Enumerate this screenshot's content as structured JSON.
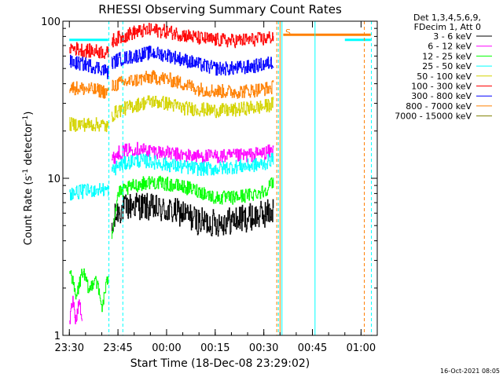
{
  "chart_data": {
    "type": "line",
    "title": "RHESSI Observing Summary Count Rates",
    "xlabel": "Start Time (18-Dec-08 23:29:02)",
    "ylabel_main": "Count Rate (s",
    "ylabel_sup1": "-1",
    "ylabel_mid": " detector",
    "ylabel_sup2": "-1",
    "ylabel_end": ")",
    "yscale": "log",
    "ylim": [
      1,
      100
    ],
    "xlim_minutes": [
      -2,
      95
    ],
    "x_ticks": [
      {
        "label": "23:30",
        "t": 0
      },
      {
        "label": "23:45",
        "t": 15
      },
      {
        "label": "00:00",
        "t": 30
      },
      {
        "label": "00:15",
        "t": 45
      },
      {
        "label": "00:30",
        "t": 60
      },
      {
        "label": "00:45",
        "t": 75
      },
      {
        "label": "01:00",
        "t": 90
      }
    ],
    "y_ticks": [
      {
        "label": "1",
        "v": 1
      },
      {
        "label": "10",
        "v": 10
      },
      {
        "label": "100",
        "v": 100
      }
    ],
    "legend_header": [
      "Det 1,3,4,5,6,9,",
      "FDecim 1, Att 0"
    ],
    "legend_placement": "right",
    "marker_s_label": "S",
    "footer_date": "16-Oct-2021 08:05",
    "series": [
      {
        "name": "3 - 6 keV",
        "color": "#000000",
        "segments": [
          [
            [
              13,
              4.3
            ],
            [
              14,
              5.6
            ],
            [
              15,
              6.2
            ],
            [
              20,
              6.8
            ],
            [
              25,
              6.5
            ],
            [
              30,
              6.2
            ],
            [
              35,
              6.0
            ],
            [
              40,
              5.3
            ],
            [
              45,
              5.2
            ],
            [
              50,
              5.4
            ],
            [
              55,
              5.6
            ],
            [
              60,
              5.9
            ],
            [
              63,
              6.3
            ]
          ]
        ]
      },
      {
        "name": "6 - 12 keV",
        "color": "#ff00ff",
        "segments": [
          [
            [
              0,
              1.2
            ],
            [
              1,
              1.7
            ],
            [
              2,
              1.2
            ],
            [
              3,
              1.8
            ],
            [
              4,
              1.2
            ]
          ],
          [
            [
              13,
              13
            ],
            [
              15,
              14.5
            ],
            [
              20,
              15.5
            ],
            [
              25,
              15
            ],
            [
              30,
              14.5
            ],
            [
              35,
              14
            ],
            [
              40,
              13.8
            ],
            [
              45,
              13.8
            ],
            [
              50,
              13.8
            ],
            [
              55,
              14
            ],
            [
              60,
              14.5
            ],
            [
              63,
              15
            ]
          ]
        ]
      },
      {
        "name": "12 - 25 keV",
        "color": "#00ff00",
        "segments": [
          [
            [
              0,
              2.8
            ],
            [
              2,
              1.7
            ],
            [
              4,
              2.6
            ],
            [
              6,
              1.9
            ],
            [
              8,
              2.4
            ],
            [
              10,
              1.5
            ],
            [
              12,
              2.4
            ]
          ],
          [
            [
              13,
              4.5
            ],
            [
              14,
              6
            ],
            [
              15,
              8
            ],
            [
              20,
              9
            ],
            [
              25,
              9.5
            ],
            [
              30,
              9.2
            ],
            [
              35,
              8.8
            ],
            [
              40,
              8.3
            ],
            [
              45,
              7.5
            ],
            [
              50,
              7.5
            ],
            [
              55,
              7.8
            ],
            [
              60,
              8.3
            ],
            [
              63,
              9.5
            ]
          ]
        ]
      },
      {
        "name": "25 - 50 keV",
        "color": "#00ffff",
        "segments": [
          [
            [
              0,
              8
            ],
            [
              5,
              8.3
            ],
            [
              10,
              8.5
            ],
            [
              12,
              8.4
            ]
          ],
          [
            [
              13,
              11
            ],
            [
              15,
              12
            ],
            [
              20,
              13
            ],
            [
              25,
              12.8
            ],
            [
              30,
              12.2
            ],
            [
              35,
              11.8
            ],
            [
              40,
              11.5
            ],
            [
              45,
              11.5
            ],
            [
              50,
              11.8
            ],
            [
              55,
              12
            ],
            [
              60,
              12.3
            ],
            [
              63,
              13.5
            ]
          ],
          [
            [
              0,
              76
            ],
            [
              12,
              76
            ]
          ],
          [
            [
              85,
              76
            ],
            [
              93,
              76
            ]
          ]
        ]
      },
      {
        "name": "50 - 100 keV",
        "color": "#d4d400",
        "segments": [
          [
            [
              0,
              22
            ],
            [
              5,
              22
            ],
            [
              10,
              22
            ],
            [
              12,
              21
            ]
          ],
          [
            [
              13,
              25
            ],
            [
              15,
              27
            ],
            [
              20,
              29
            ],
            [
              25,
              31
            ],
            [
              30,
              30
            ],
            [
              35,
              28
            ],
            [
              40,
              27.5
            ],
            [
              45,
              27
            ],
            [
              50,
              27
            ],
            [
              55,
              28
            ],
            [
              60,
              28.5
            ],
            [
              63,
              30
            ]
          ]
        ]
      },
      {
        "name": "100 - 300 keV",
        "color": "#ff0000",
        "segments": [
          [
            [
              0,
              68
            ],
            [
              5,
              65
            ],
            [
              10,
              64
            ],
            [
              12,
              62
            ]
          ],
          [
            [
              13,
              75
            ],
            [
              15,
              78
            ],
            [
              20,
              85
            ],
            [
              25,
              88
            ],
            [
              30,
              86
            ],
            [
              35,
              82
            ],
            [
              40,
              78
            ],
            [
              45,
              76
            ],
            [
              50,
              75
            ],
            [
              55,
              76
            ],
            [
              60,
              77
            ],
            [
              63,
              80
            ]
          ]
        ]
      },
      {
        "name": "300 - 800 keV",
        "color": "#0000ff",
        "segments": [
          [
            [
              0,
              55
            ],
            [
              5,
              53
            ],
            [
              10,
              50
            ],
            [
              12,
              47
            ]
          ],
          [
            [
              13,
              54
            ],
            [
              15,
              57
            ],
            [
              20,
              60
            ],
            [
              25,
              63
            ],
            [
              30,
              61
            ],
            [
              35,
              57
            ],
            [
              40,
              53
            ],
            [
              45,
              50
            ],
            [
              50,
              50
            ],
            [
              55,
              51
            ],
            [
              60,
              53
            ],
            [
              63,
              55
            ]
          ]
        ]
      },
      {
        "name": "800 - 7000 keV",
        "color": "#ff8000",
        "segments": [
          [
            [
              0,
              38
            ],
            [
              5,
              37
            ],
            [
              10,
              36
            ],
            [
              12,
              35
            ]
          ],
          [
            [
              13,
              38
            ],
            [
              15,
              40
            ],
            [
              20,
              42
            ],
            [
              25,
              44
            ],
            [
              30,
              43
            ],
            [
              35,
              40
            ],
            [
              40,
              37
            ],
            [
              45,
              36
            ],
            [
              50,
              35.5
            ],
            [
              55,
              36
            ],
            [
              60,
              37
            ],
            [
              63,
              38
            ]
          ],
          [
            [
              66,
              82
            ],
            [
              93,
              82
            ]
          ]
        ]
      },
      {
        "name": "7000 - 15000 keV",
        "color": "#808000",
        "segments": []
      }
    ]
  }
}
